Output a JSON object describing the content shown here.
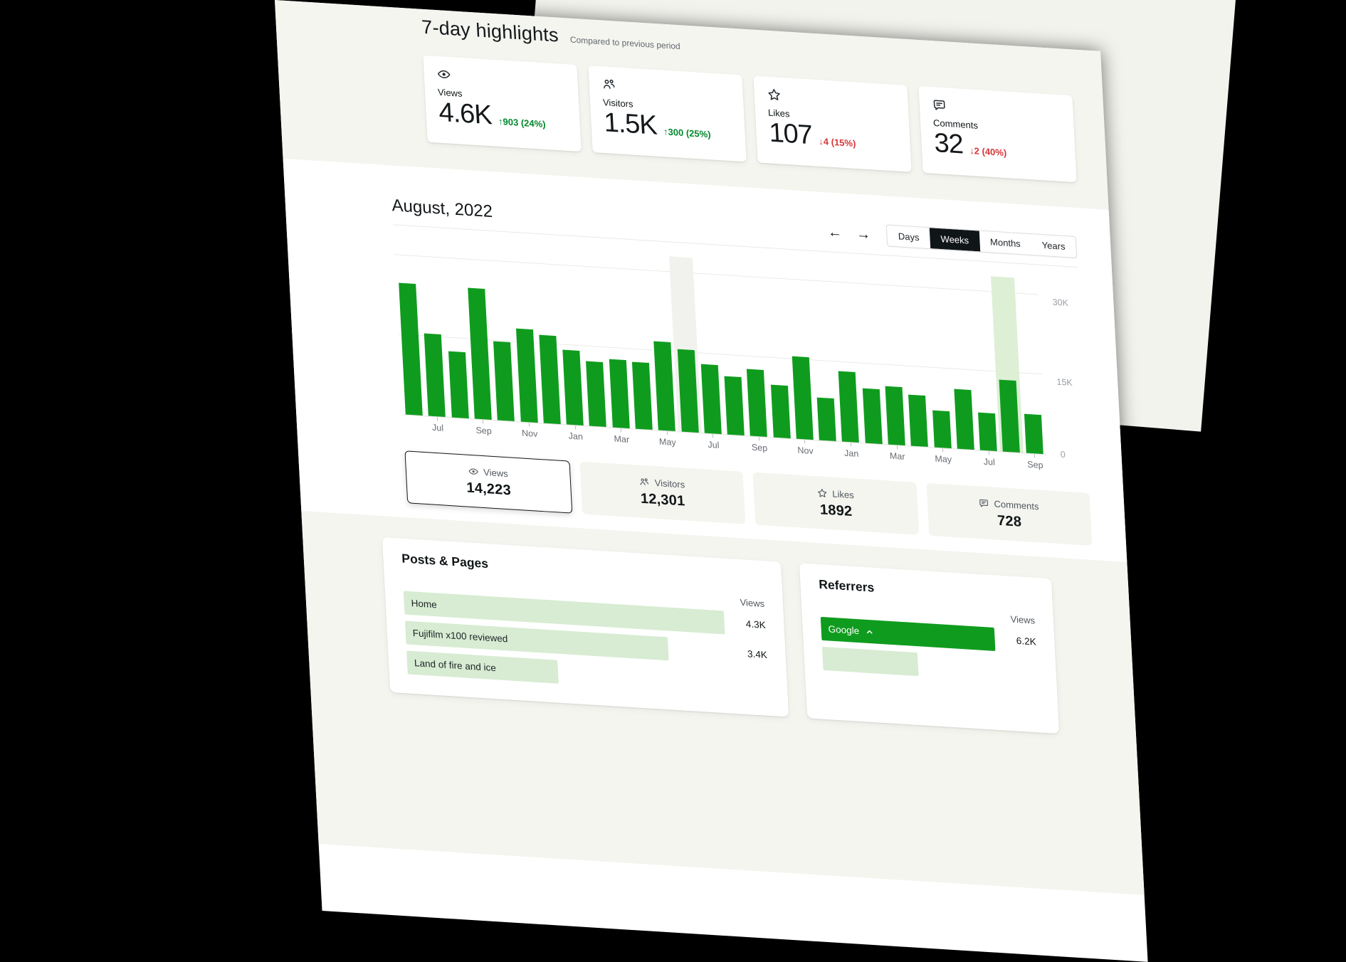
{
  "highlights": {
    "title": "7-day highlights",
    "subtitle": "Compared to previous period",
    "cards": [
      {
        "icon": "eye-icon",
        "label": "Views",
        "value": "4.6K",
        "change": "↑903 (24%)",
        "direction": "up"
      },
      {
        "icon": "people-icon",
        "label": "Visitors",
        "value": "1.5K",
        "change": "↑300 (25%)",
        "direction": "up"
      },
      {
        "icon": "star-icon",
        "label": "Likes",
        "value": "107",
        "change": "↓4 (15%)",
        "direction": "down"
      },
      {
        "icon": "comment-icon",
        "label": "Comments",
        "value": "32",
        "change": "↓2 (40%)",
        "direction": "down"
      }
    ]
  },
  "chart_section": {
    "title": "August, 2022",
    "nav": {
      "prev": "←",
      "next": "→"
    },
    "period_tabs": [
      {
        "label": "Days",
        "selected": false
      },
      {
        "label": "Weeks",
        "selected": true
      },
      {
        "label": "Months",
        "selected": false
      },
      {
        "label": "Years",
        "selected": false
      }
    ],
    "chart_data": {
      "type": "bar",
      "series_name": "Views",
      "unit": "K",
      "ylim": [
        0,
        33
      ],
      "y_ticks": [
        "30K",
        "15K",
        "0"
      ],
      "y_tick_values": [
        30,
        15,
        0
      ],
      "grid": "horizontal",
      "x_tick_labels": [
        "Jul",
        "Sep",
        "Nov",
        "Jan",
        "Mar",
        "May",
        "Jul",
        "Sep",
        "Nov",
        "Jan",
        "Mar",
        "May",
        "Jul",
        "Sep"
      ],
      "values_k": [
        24.8,
        15.5,
        12.5,
        24.6,
        14.8,
        17.6,
        16.6,
        14.0,
        12.2,
        12.8,
        12.6,
        16.8,
        15.6,
        13.0,
        11.0,
        12.6,
        9.9,
        15.6,
        8.1,
        13.3,
        10.3,
        11.0,
        9.6,
        7.0,
        11.2,
        7.1,
        13.5,
        7.3
      ],
      "highlighted_bar_index": 26,
      "hovered_band_index": 12
    },
    "metric_tabs": [
      {
        "icon": "eye-icon",
        "label": "Views",
        "value": "14,223",
        "selected": true
      },
      {
        "icon": "people-icon",
        "label": "Visitors",
        "value": "12,301",
        "selected": false
      },
      {
        "icon": "star-icon",
        "label": "Likes",
        "value": "1892",
        "selected": false
      },
      {
        "icon": "comment-icon",
        "label": "Comments",
        "value": "728",
        "selected": false
      }
    ]
  },
  "posts_pages": {
    "title": "Posts & Pages",
    "column_header": "Views",
    "rows": [
      {
        "label": "Home",
        "value": "4.3K",
        "bar_pct": 100,
        "style": "light"
      },
      {
        "label": "Fujifilm x100 reviewed",
        "value": "3.4K",
        "bar_pct": 82,
        "style": "light"
      },
      {
        "label": "Land of fire and ice",
        "value": "",
        "bar_pct": 47,
        "style": "light"
      }
    ]
  },
  "referrers": {
    "title": "Referrers",
    "column_header": "Views",
    "rows": [
      {
        "label": "Google",
        "value": "6.2K",
        "bar_pct": 100,
        "style": "solid",
        "expanded": true
      },
      {
        "label": "",
        "value": "",
        "bar_pct": 55,
        "style": "light",
        "expanded": false
      }
    ]
  },
  "colors": {
    "bar_green": "#0f9c1e",
    "positive_green": "#00882b",
    "negative_red": "#d63638",
    "band_green": "#ddefd5",
    "band_gray": "#f1f2ee",
    "section_beige": "#f4f5ef"
  }
}
